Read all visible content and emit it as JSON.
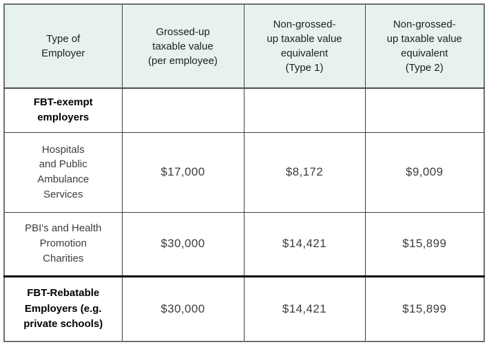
{
  "chart_data": {
    "type": "table",
    "columns": [
      "Type of Employer",
      "Grossed-up taxable value (per employee)",
      "Non-grossed-up taxable value equivalent (Type 1)",
      "Non-grossed-up taxable value equivalent (Type 2)"
    ],
    "rows": [
      [
        "FBT-exempt employers",
        "",
        "",
        ""
      ],
      [
        "Hospitals and Public Ambulance Services",
        "$17,000",
        "$8,172",
        "$9,009"
      ],
      [
        "PBI's and Health Promotion Charities",
        "$30,000",
        "$14,421",
        "$15,899"
      ],
      [
        "FBT-Rebatable Employers (e.g. private schools)",
        "$30,000",
        "$14,421",
        "$15,899"
      ]
    ],
    "layout_hints": {
      "header_background": "#e7f2f0",
      "grid": true,
      "bold_row_labels": [
        "FBT-exempt employers",
        "FBT-Rebatable Employers (e.g. private schools)"
      ],
      "thick_border_above_row": "FBT-Rebatable Employers (e.g. private schools)"
    }
  },
  "table": {
    "headers": [
      "Type of\nEmployer",
      "Grossed-up\ntaxable value\n(per employee)",
      "Non-grossed-\nup taxable value\nequivalent\n(Type 1)",
      "Non-grossed-\nup taxable value\nequivalent\n(Type 2)"
    ],
    "rows": [
      {
        "label": "FBT-exempt\nemployers",
        "col2": "",
        "col3": "",
        "col4": ""
      },
      {
        "label": "Hospitals\nand Public\nAmbulance\nServices",
        "col2": "$17,000",
        "col3": "$8,172",
        "col4": "$9,009"
      },
      {
        "label": "PBI's and Health\nPromotion\nCharities",
        "col2": "$30,000",
        "col3": "$14,421",
        "col4": "$15,899"
      },
      {
        "label": "FBT-Rebatable\nEmployers (e.g.\nprivate schools)",
        "col2": "$30,000",
        "col3": "$14,421",
        "col4": "$15,899"
      }
    ],
    "colors": {
      "header_background": "#e7f2f0",
      "outer_border": "#6e6e6e",
      "grid_border": "#3c3c3c",
      "thick_border": "#000000",
      "header_text": "#20201f",
      "body_text": "#3c3c3b",
      "bold_text": "#000000"
    }
  }
}
